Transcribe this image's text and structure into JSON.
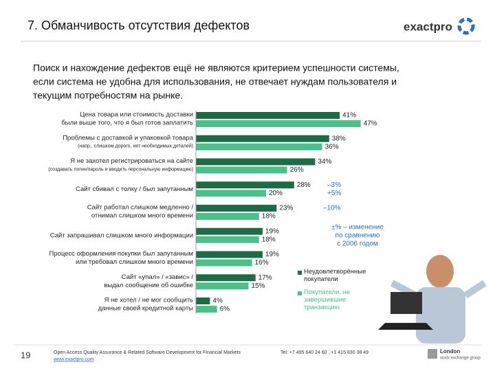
{
  "header": {
    "title": "7. Обманчивость отсутствия дефектов",
    "logo": "exactpro"
  },
  "body": {
    "lines": [
      "Поиск и нахождение дефектов ещё не являются критерием успешности системы,",
      "если система не удобна для использования, не отвечает нуждам пользователя и",
      "текущим потребностям на рынке."
    ]
  },
  "chart_data": {
    "type": "bar",
    "orientation": "horizontal",
    "categories": [
      [
        "Цена товара или стоимость доставки",
        "были выше того, что я был готов заплатить"
      ],
      [
        "Проблемы с доставкой и упаковкой товара",
        "(напр., слишком дорого, нет необходимых деталей)"
      ],
      [
        "Я не захотел регистрироваться на сайте",
        "(создавать логин/пароль и вводить персональную информацию)"
      ],
      [
        "Сайт сбивал с толку / был запутанным"
      ],
      [
        "Сайт работал слишком медленно /",
        "отнимал слишком много времени"
      ],
      [
        "Сайт запрашивал слишком много информации"
      ],
      [
        "Процесс оформления покупки был запутанным",
        "или требовал слишком много времени"
      ],
      [
        "Сайт «упал» / «завис» /",
        "выдал сообщение об ошибке"
      ],
      [
        "Я не хотел / не мог сообщить",
        "данные своей кредитной карты"
      ]
    ],
    "series": [
      {
        "name": "Неудовлетворённые покупатели",
        "color": "#1f6b47",
        "values": [
          41,
          38,
          34,
          28,
          23,
          19,
          19,
          17,
          4
        ],
        "value_labels": [
          "41%",
          "38%",
          "34%",
          "28%",
          "23%",
          "19%",
          "19%",
          "17%",
          "4%"
        ]
      },
      {
        "name": "Покупатели, не завершившие транзакцию",
        "color": "#4cbf8a",
        "values": [
          47,
          36,
          26,
          20,
          18,
          18,
          16,
          15,
          6
        ],
        "value_labels": [
          "47%",
          "36%",
          "26%",
          "20%",
          "18%",
          "18%",
          "16%",
          "15%",
          "6%"
        ]
      }
    ],
    "annotations": [
      "–3%",
      "+5%",
      "–10%"
    ],
    "note": [
      "±% – изменение",
      "по сравнению",
      "с 2006 годом"
    ]
  },
  "footer": {
    "page": "19",
    "line1": "Open Access Quality Assurance & Related Software Development for Financial Markets",
    "url": "www.exactpro.com",
    "phone": "Tel: +7 495 640 24 60 , +1 415 830 38 49",
    "partner": "London",
    "partner_sub": "stock exchange group"
  }
}
